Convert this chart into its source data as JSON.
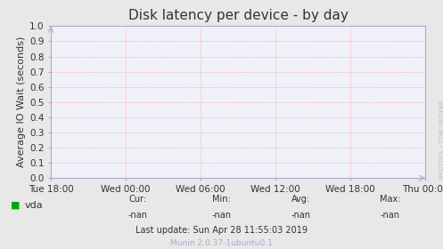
{
  "title": "Disk latency per device - by day",
  "ylabel": "Average IO Wait (seconds)",
  "background_color": "#e8e8e8",
  "plot_bg_color": "#f0f0f8",
  "grid_color": "#ff8888",
  "ylim": [
    0.0,
    1.0
  ],
  "yticks": [
    0.0,
    0.1,
    0.2,
    0.3,
    0.4,
    0.5,
    0.6,
    0.7,
    0.8,
    0.9,
    1.0
  ],
  "xtick_labels": [
    "Tue 18:00",
    "Wed 00:00",
    "Wed 06:00",
    "Wed 12:00",
    "Wed 18:00",
    "Thu 00:00"
  ],
  "xtick_positions": [
    0,
    1,
    2,
    3,
    4,
    5
  ],
  "xlim": [
    0,
    5
  ],
  "legend_label": "vda",
  "legend_color": "#00aa00",
  "cur_label": "Cur:",
  "cur_val": "-nan",
  "min_label": "Min:",
  "min_val": "-nan",
  "avg_label": "Avg:",
  "avg_val": "-nan",
  "max_label": "Max:",
  "max_val": "-nan",
  "last_update": "Last update: Sun Apr 28 11:55:03 2019",
  "munin_label": "Munin 2.0.37-1ubuntu0.1",
  "rrdtool_label": "RRDTOOL / TOBI OETIKER",
  "title_fontsize": 11,
  "axis_label_fontsize": 8,
  "tick_fontsize": 7.5,
  "footer_fontsize": 7,
  "legend_fontsize": 8,
  "spine_color": "#aaaacc"
}
